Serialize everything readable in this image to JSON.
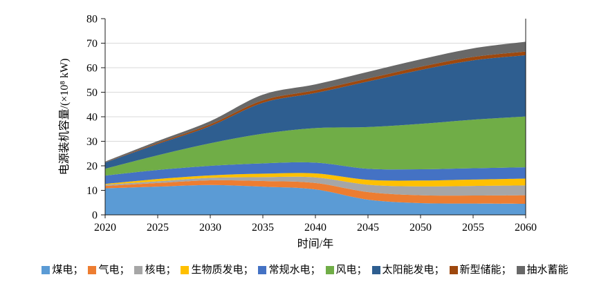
{
  "figure": {
    "background": "#FFFFFF",
    "axis_color": "#1a1a1a",
    "grid_color": "#D9D9D9",
    "text_color": "#000000"
  },
  "chart_data": {
    "type": "area",
    "stacked": true,
    "title": "",
    "xlabel": "时间/年",
    "ylabel": "电源装机容量/(×10⁸ kW)",
    "x": [
      2020,
      2025,
      2030,
      2035,
      2040,
      2045,
      2050,
      2055,
      2060
    ],
    "x_tick_labels": [
      "2020",
      "2025",
      "2030",
      "2035",
      "2040",
      "2045",
      "2050",
      "2055",
      "2060"
    ],
    "ylim": [
      0,
      80
    ],
    "y_ticks": [
      0,
      10,
      20,
      30,
      40,
      50,
      60,
      70,
      80
    ],
    "grid": "horizontal",
    "legend_position": "bottom",
    "legend_separator": "；",
    "series": [
      {
        "name": "煤电",
        "color": "#5B9BD5",
        "values": [
          10.8,
          11.5,
          12.2,
          11.5,
          10.4,
          6.2,
          4.8,
          4.6,
          4.5
        ]
      },
      {
        "name": "气电",
        "color": "#ED7D31",
        "values": [
          1.0,
          1.5,
          1.9,
          2.3,
          2.6,
          3.1,
          3.2,
          3.3,
          3.5
        ]
      },
      {
        "name": "核电",
        "color": "#A6A6A6",
        "values": [
          0.5,
          0.7,
          1.0,
          1.6,
          2.3,
          3.0,
          3.6,
          3.9,
          4.0
        ]
      },
      {
        "name": "生物质发电",
        "color": "#FFC000",
        "values": [
          0.3,
          0.9,
          1.0,
          1.4,
          1.6,
          2.0,
          2.4,
          2.6,
          2.8
        ]
      },
      {
        "name": "常规水电",
        "color": "#4472C4",
        "values": [
          3.4,
          3.7,
          3.9,
          4.2,
          4.4,
          4.5,
          4.6,
          4.6,
          4.6
        ]
      },
      {
        "name": "风电",
        "color": "#70AD47",
        "values": [
          2.8,
          6.0,
          9.2,
          12.1,
          14.1,
          17.0,
          18.5,
          19.8,
          20.7
        ]
      },
      {
        "name": "太阳能发电",
        "color": "#2E5E90",
        "values": [
          2.5,
          4.6,
          7.0,
          12.6,
          14.3,
          18.6,
          22.0,
          24.2,
          25.0
        ]
      },
      {
        "name": "新型储能",
        "color": "#9E480E",
        "values": [
          0.1,
          0.4,
          0.7,
          1.0,
          1.1,
          1.2,
          1.3,
          1.4,
          1.5
        ]
      },
      {
        "name": "抽水蓄能",
        "color": "#686868",
        "values": [
          0.3,
          0.8,
          1.3,
          2.3,
          2.4,
          2.7,
          3.0,
          3.5,
          4.0
        ]
      }
    ]
  }
}
